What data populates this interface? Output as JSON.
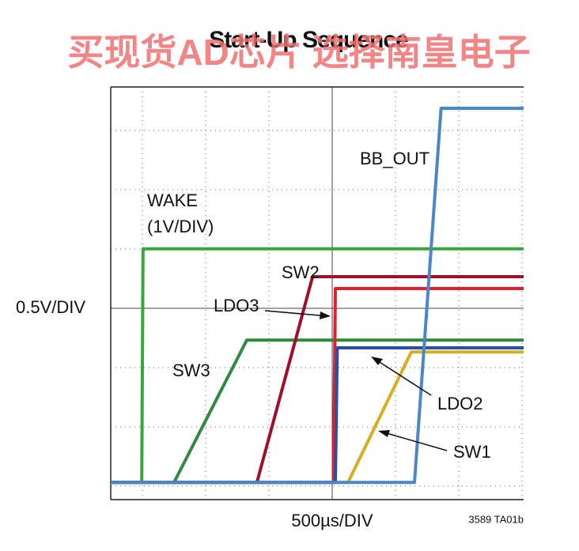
{
  "chart_data": {
    "type": "line",
    "title": "Start-Up Sequence",
    "watermark": "买现货AD芯片 选择南皇电子",
    "x_label": "500µs/DIV",
    "y_label": "0.5V/DIV",
    "footnote": "3589 TA01b",
    "xlim": [
      0,
      6.525
    ],
    "ylim": [
      0,
      6.96
    ],
    "series": [
      {
        "name": "WAKE",
        "color": "#3aa53a",
        "x": [
          0,
          0.49,
          0.51,
          6.525
        ],
        "values": [
          0.29,
          0.29,
          4.23,
          4.23
        ]
      },
      {
        "name": "SW3",
        "color": "#2e8b3e",
        "x": [
          0,
          1.0,
          2.15,
          6.525
        ],
        "values": [
          0.29,
          0.29,
          2.69,
          2.69
        ]
      },
      {
        "name": "SW2",
        "color": "#a0102a",
        "x": [
          0,
          2.31,
          3.19,
          6.525
        ],
        "values": [
          0.29,
          0.29,
          3.76,
          3.76
        ]
      },
      {
        "name": "LDO3",
        "color": "#e0202a",
        "x": [
          0,
          3.52,
          3.55,
          6.525
        ],
        "values": [
          0.29,
          0.29,
          3.56,
          3.56
        ]
      },
      {
        "name": "SW1",
        "color": "#d4b020",
        "x": [
          0,
          3.75,
          4.75,
          6.525
        ],
        "values": [
          0.29,
          0.29,
          2.49,
          2.49
        ]
      },
      {
        "name": "LDO2",
        "color": "#2b4fa8",
        "x": [
          0,
          3.55,
          3.58,
          6.525
        ],
        "values": [
          0.29,
          0.29,
          2.56,
          2.56
        ]
      },
      {
        "name": "BB_OUT",
        "color": "#4a86c8",
        "x": [
          0,
          4.8,
          5.22,
          6.525
        ],
        "values": [
          0.29,
          0.29,
          6.6,
          6.6
        ]
      }
    ],
    "annotations": [
      "(1V/DIV)"
    ]
  }
}
